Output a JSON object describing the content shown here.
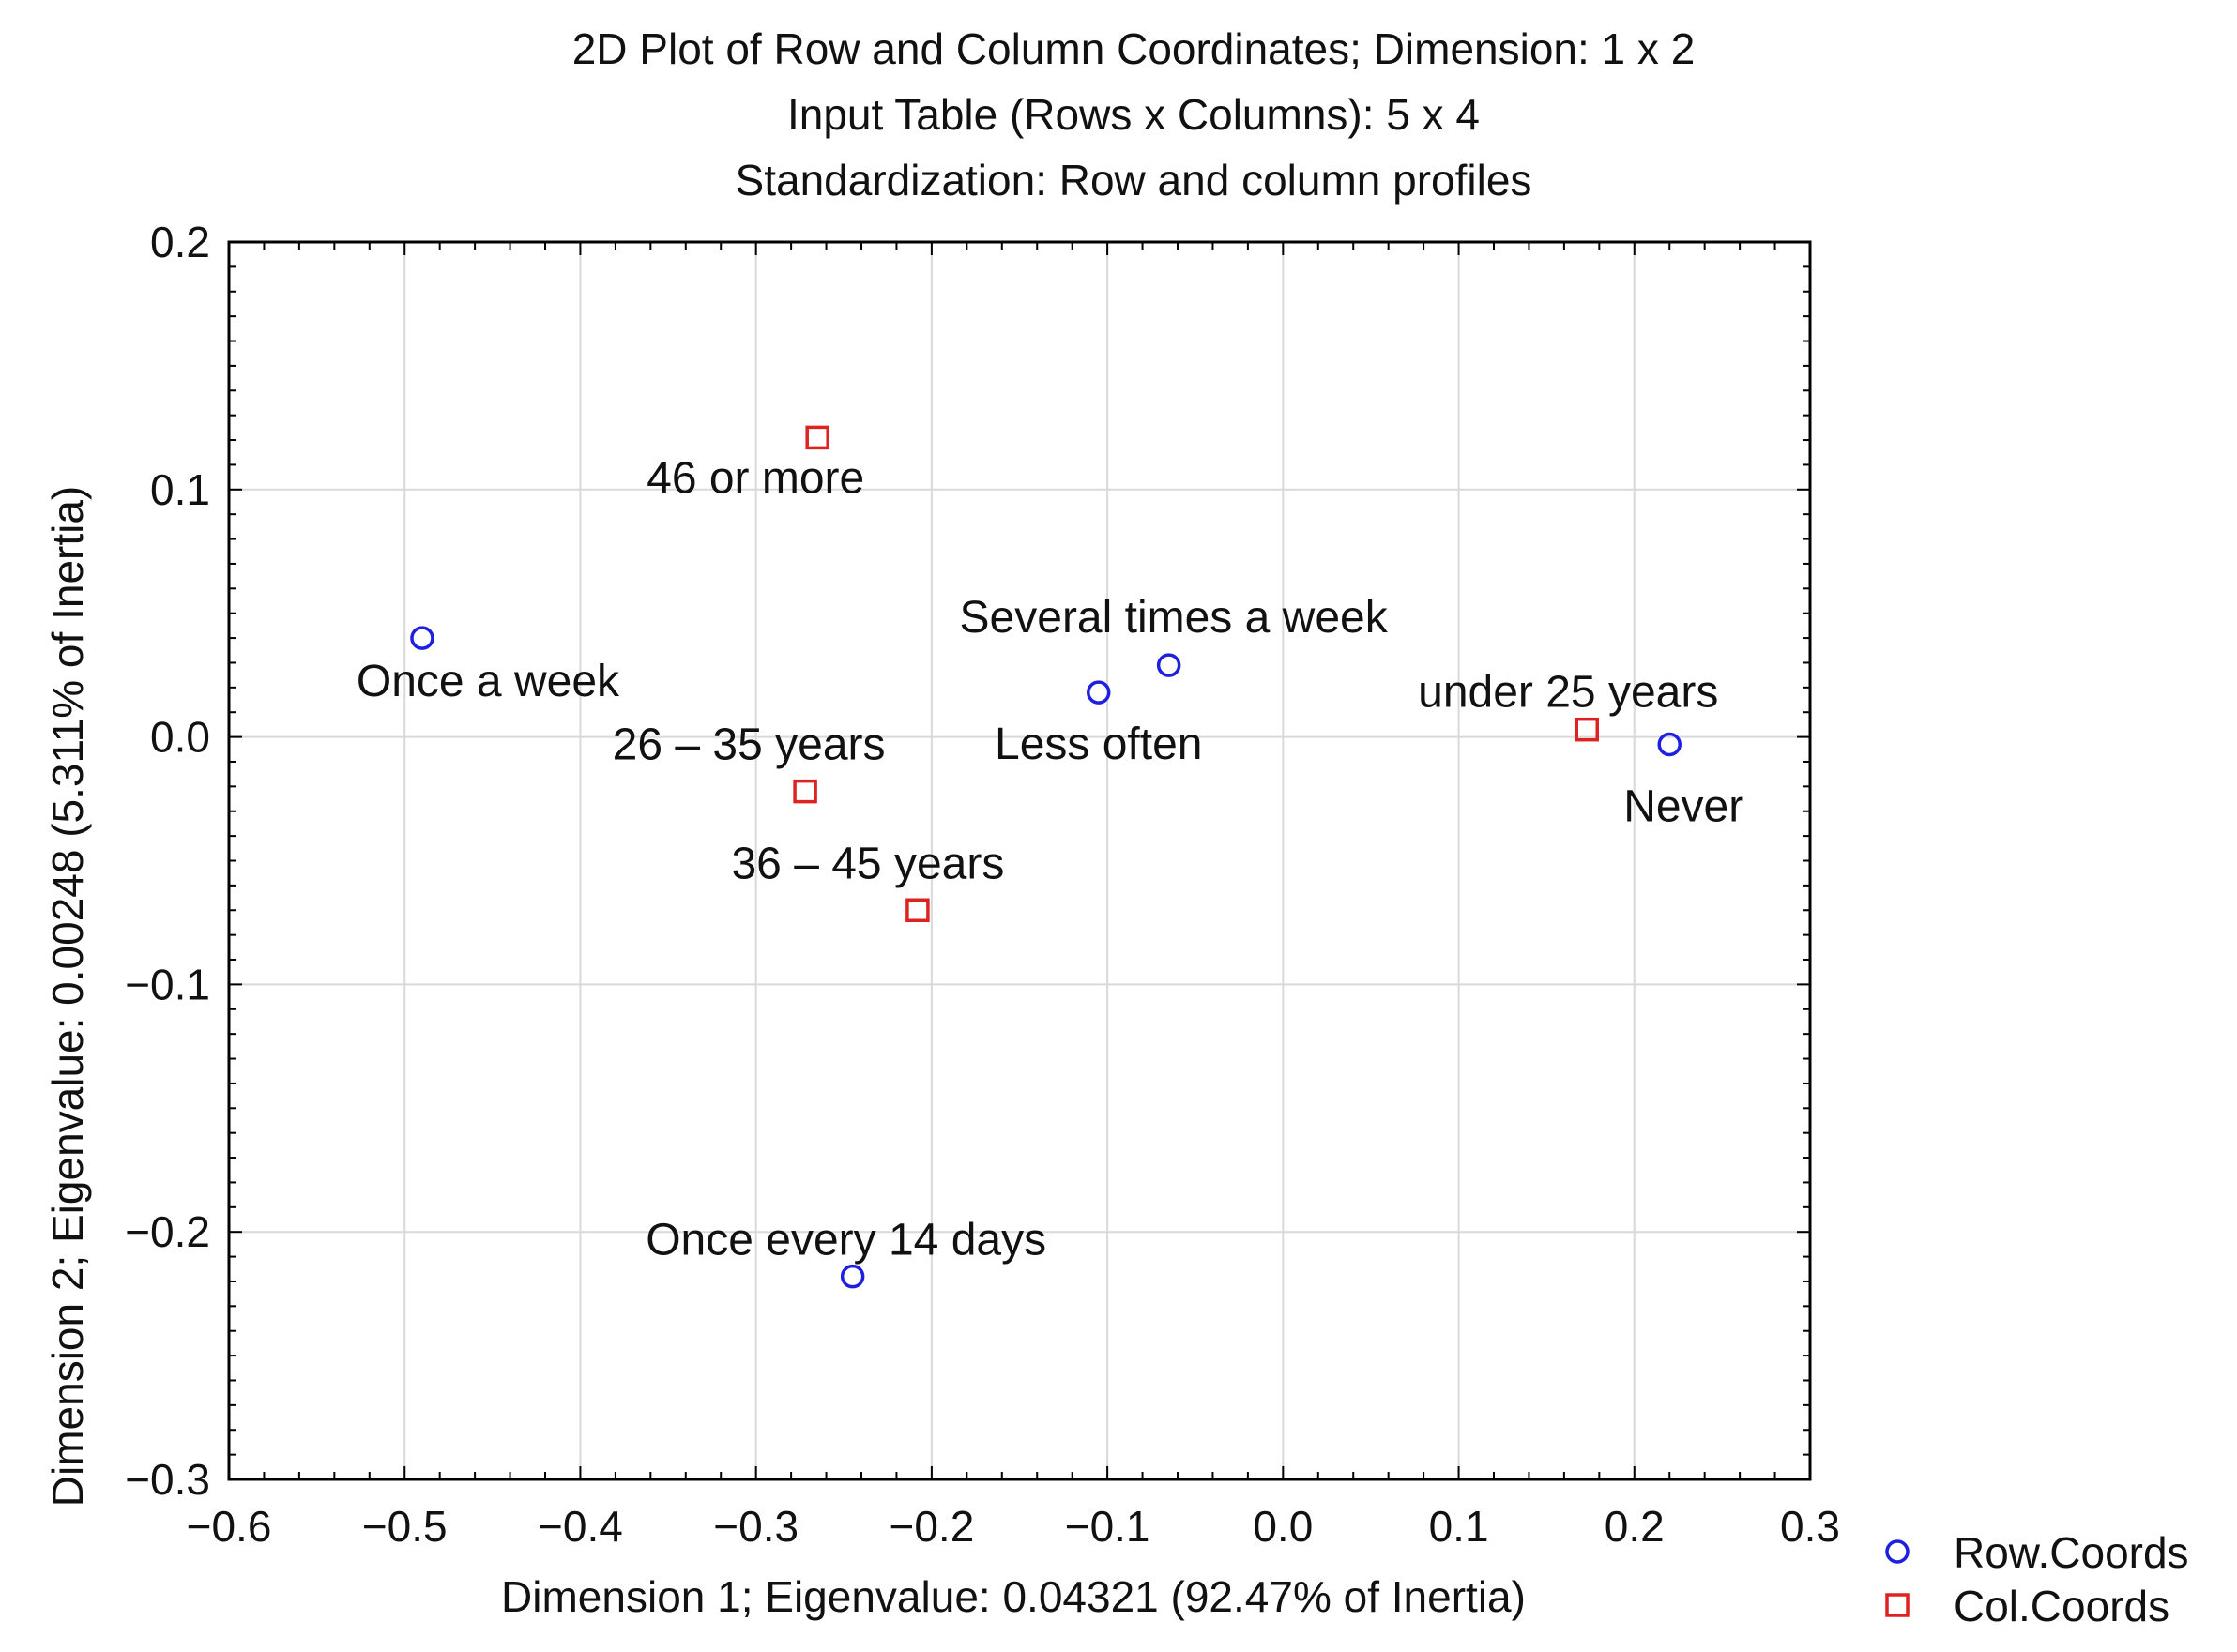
{
  "chart_data": {
    "type": "scatter",
    "title": [
      "2D Plot of Row and Column Coordinates; Dimension:  1 x  2",
      "Input Table (Rows x Columns): 5 x 4",
      "Standardization: Row and column profiles"
    ],
    "xlabel": "Dimension 1; Eigenvalue: 0.04321 (92.47% of Inertia)",
    "ylabel": "Dimension 2; Eigenvalue: 0.00248 (5.311% of Inertia)",
    "xlim": [
      -0.6,
      0.3
    ],
    "ylim": [
      -0.3,
      0.2
    ],
    "xticks": [
      -0.6,
      -0.5,
      -0.4,
      -0.3,
      -0.2,
      -0.1,
      0.0,
      0.1,
      0.2,
      0.3
    ],
    "yticks": [
      -0.3,
      -0.2,
      -0.1,
      0.0,
      0.1,
      0.2
    ],
    "xtick_labels": [
      "−0.6",
      "−0.5",
      "−0.4",
      "−0.3",
      "−0.2",
      "−0.1",
      "0.0",
      "0.1",
      "0.2",
      "0.3"
    ],
    "ytick_labels": [
      "−0.3",
      "−0.2",
      "−0.1",
      "0.0",
      "0.1",
      "0.2"
    ],
    "grid": true,
    "legend_position": "bottom-right-outside",
    "series": [
      {
        "name": "Row.Coords",
        "marker": "circle",
        "color": "#1f1fe0",
        "points": [
          {
            "label": "Once a week",
            "x": -0.49,
            "y": 0.04
          },
          {
            "label": "Once every 14 days",
            "x": -0.245,
            "y": -0.218
          },
          {
            "label": "Several times a week",
            "x": -0.065,
            "y": 0.029
          },
          {
            "label": "Less often",
            "x": -0.105,
            "y": 0.018
          },
          {
            "label": "Never",
            "x": 0.22,
            "y": -0.003
          }
        ]
      },
      {
        "name": "Col.Coords",
        "marker": "square",
        "color": "#dd2222",
        "points": [
          {
            "label": "46 or more",
            "x": -0.265,
            "y": 0.121
          },
          {
            "label": "26 – 35 years",
            "x": -0.272,
            "y": -0.022
          },
          {
            "label": "36 – 45 years",
            "x": -0.208,
            "y": -0.07
          },
          {
            "label": "under 25 years",
            "x": 0.173,
            "y": 0.003
          }
        ]
      }
    ]
  }
}
